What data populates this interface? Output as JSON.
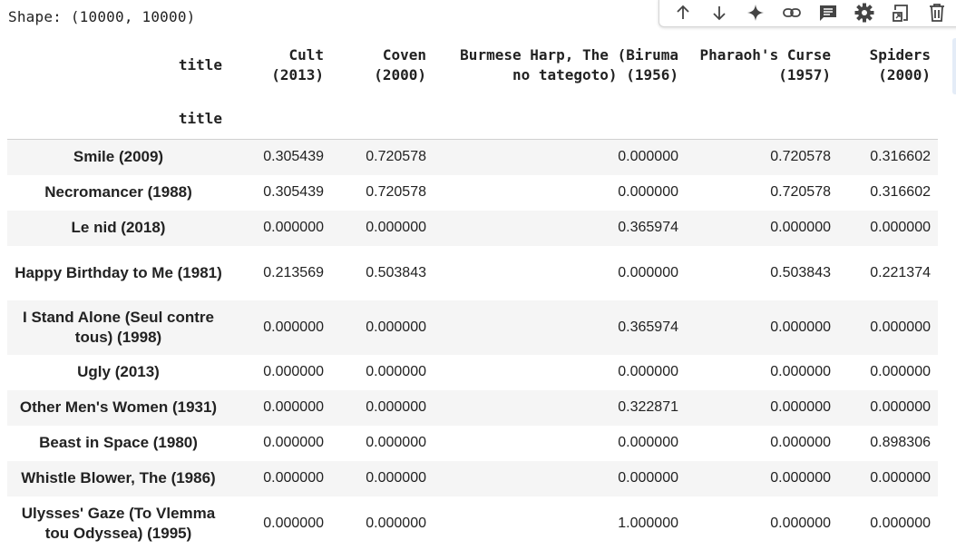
{
  "output": {
    "shape_text": "Shape: (10000, 10000)"
  },
  "toolbar": {
    "buttons": [
      {
        "name": "move-up-icon",
        "label": "Move cell up"
      },
      {
        "name": "move-down-icon",
        "label": "Move cell down"
      },
      {
        "name": "sparkle-icon",
        "label": "Gemini"
      },
      {
        "name": "link-icon",
        "label": "Copy link"
      },
      {
        "name": "comment-icon",
        "label": "Add comment"
      },
      {
        "name": "gear-icon",
        "label": "Settings"
      },
      {
        "name": "mirror-cell-icon",
        "label": "Mirror cell in tab"
      },
      {
        "name": "trash-icon",
        "label": "Delete cell"
      }
    ]
  },
  "dataframe": {
    "columns_name": "title",
    "index_name": "title",
    "columns": [
      "Cult (2013)",
      "Coven (2000)",
      "Burmese Harp, The (Biruma no tategoto) (1956)",
      "Pharaoh's Curse (1957)",
      "Spiders (2000)"
    ],
    "rows": [
      {
        "index": "Smile (2009)",
        "values": [
          "0.305439",
          "0.720578",
          "0.000000",
          "0.720578",
          "0.316602"
        ]
      },
      {
        "index": "Necromancer (1988)",
        "values": [
          "0.305439",
          "0.720578",
          "0.000000",
          "0.720578",
          "0.316602"
        ]
      },
      {
        "index": "Le nid (2018)",
        "values": [
          "0.000000",
          "0.000000",
          "0.365974",
          "0.000000",
          "0.000000"
        ]
      },
      {
        "index": "Happy Birthday to Me (1981)",
        "values": [
          "0.213569",
          "0.503843",
          "0.000000",
          "0.503843",
          "0.221374"
        ]
      },
      {
        "index": "I Stand Alone (Seul contre tous) (1998)",
        "values": [
          "0.000000",
          "0.000000",
          "0.365974",
          "0.000000",
          "0.000000"
        ]
      },
      {
        "index": "Ugly (2013)",
        "values": [
          "0.000000",
          "0.000000",
          "0.000000",
          "0.000000",
          "0.000000"
        ]
      },
      {
        "index": "Other Men's Women (1931)",
        "values": [
          "0.000000",
          "0.000000",
          "0.322871",
          "0.000000",
          "0.000000"
        ]
      },
      {
        "index": "Beast in Space (1980)",
        "values": [
          "0.000000",
          "0.000000",
          "0.000000",
          "0.000000",
          "0.898306"
        ]
      },
      {
        "index": "Whistle Blower, The (1986)",
        "values": [
          "0.000000",
          "0.000000",
          "0.000000",
          "0.000000",
          "0.000000"
        ]
      },
      {
        "index": "Ulysses' Gaze (To Vlemma tou Odyssea) (1995)",
        "values": [
          "0.000000",
          "0.000000",
          "1.000000",
          "0.000000",
          "0.000000"
        ]
      }
    ]
  }
}
